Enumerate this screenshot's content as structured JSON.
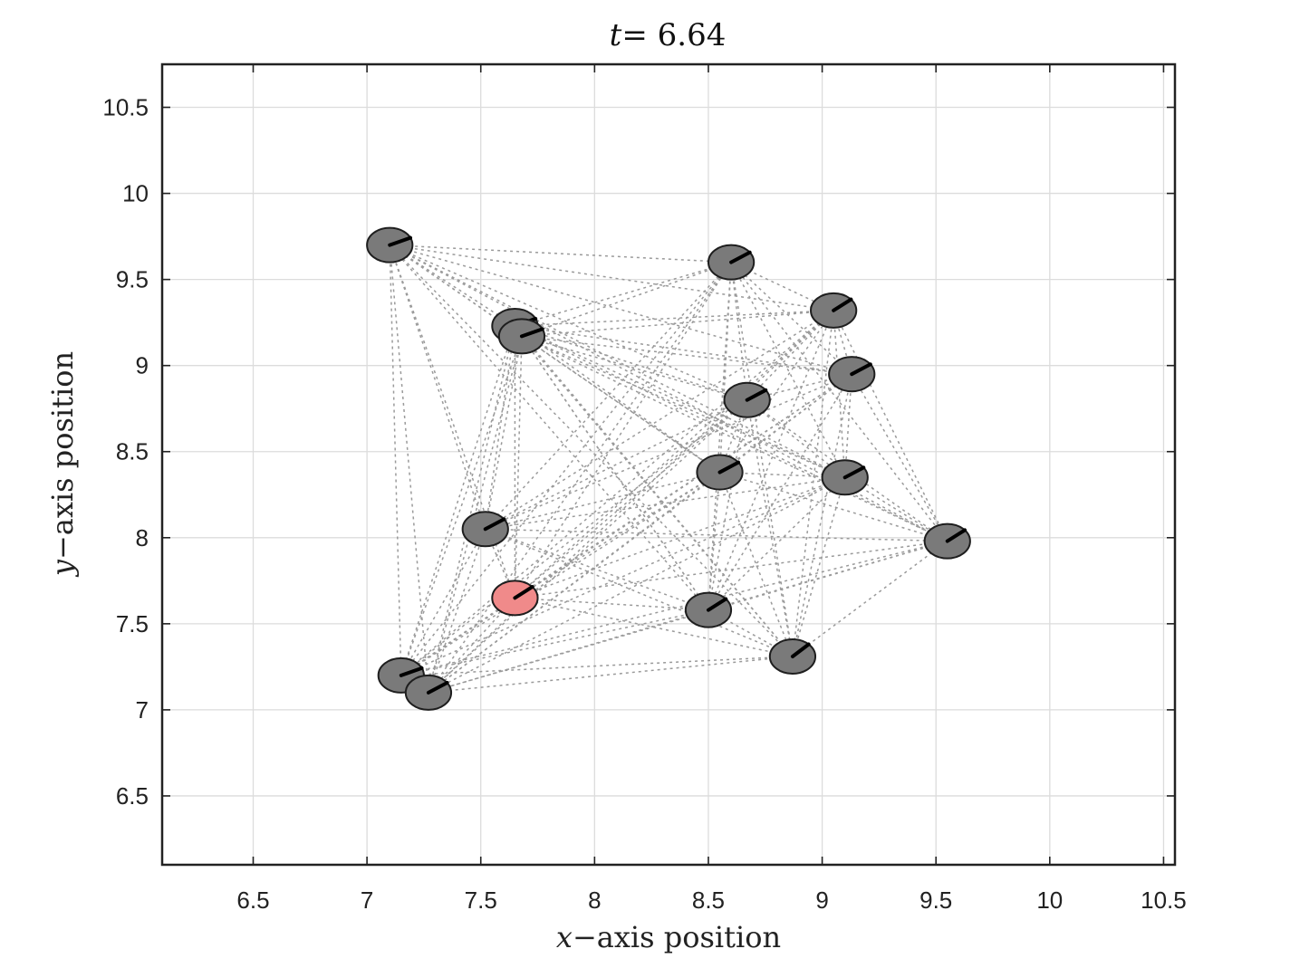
{
  "chart_data": {
    "type": "scatter",
    "title_var": "t",
    "title_eq": "= 6.64",
    "xlabel_var": "x",
    "xlabel_text": "−axis position",
    "ylabel_var": "y",
    "ylabel_text": "−axis position",
    "xlim": [
      6.1,
      10.55
    ],
    "ylim": [
      6.1,
      10.75
    ],
    "xticks": [
      "6.5",
      "7",
      "7.5",
      "8",
      "8.5",
      "9",
      "9.5",
      "10",
      "10.5"
    ],
    "yticks": [
      "6.5",
      "7",
      "7.5",
      "8",
      "8.5",
      "9",
      "9.5",
      "10",
      "10.5"
    ],
    "grid": true,
    "agent_radius": 0.1,
    "colors": {
      "agent_fill": "#7a7a7a",
      "highlight_fill": "#f08a8a",
      "highlight_stroke": "#e03a3a",
      "link": "#9a9a9a",
      "grid": "#dcdcdc"
    },
    "agents": [
      {
        "x": 7.1,
        "y": 9.7,
        "heading_deg": 25
      },
      {
        "x": 8.6,
        "y": 9.6,
        "heading_deg": 35
      },
      {
        "x": 7.65,
        "y": 9.23,
        "heading_deg": 25
      },
      {
        "x": 7.68,
        "y": 9.17,
        "heading_deg": 25
      },
      {
        "x": 9.05,
        "y": 9.32,
        "heading_deg": 40
      },
      {
        "x": 9.13,
        "y": 8.95,
        "heading_deg": 35
      },
      {
        "x": 8.67,
        "y": 8.8,
        "heading_deg": 35
      },
      {
        "x": 8.55,
        "y": 8.38,
        "heading_deg": 35
      },
      {
        "x": 9.1,
        "y": 8.35,
        "heading_deg": 35
      },
      {
        "x": 7.52,
        "y": 8.05,
        "heading_deg": 35
      },
      {
        "x": 9.55,
        "y": 7.98,
        "heading_deg": 40
      },
      {
        "x": 8.5,
        "y": 7.58,
        "heading_deg": 40
      },
      {
        "x": 8.87,
        "y": 7.31,
        "heading_deg": 45
      },
      {
        "x": 7.15,
        "y": 7.2,
        "heading_deg": 25
      },
      {
        "x": 7.27,
        "y": 7.1,
        "heading_deg": 35
      },
      {
        "x": 7.65,
        "y": 7.65,
        "heading_deg": 40,
        "highlight": true
      }
    ]
  }
}
